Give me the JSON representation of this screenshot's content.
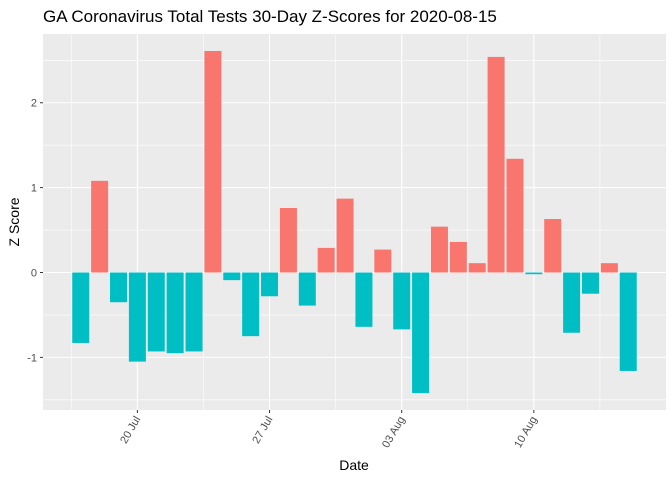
{
  "chart_data": {
    "type": "bar",
    "title": "GA Coronavirus Total Tests 30-Day Z-Scores for 2020-08-15",
    "xlabel": "Date",
    "ylabel": "Z Score",
    "x": [
      "2020-07-17",
      "2020-07-18",
      "2020-07-19",
      "2020-07-20",
      "2020-07-21",
      "2020-07-22",
      "2020-07-23",
      "2020-07-24",
      "2020-07-25",
      "2020-07-26",
      "2020-07-27",
      "2020-07-28",
      "2020-07-29",
      "2020-07-30",
      "2020-07-31",
      "2020-08-01",
      "2020-08-02",
      "2020-08-03",
      "2020-08-04",
      "2020-08-05",
      "2020-08-06",
      "2020-08-07",
      "2020-08-08",
      "2020-08-09",
      "2020-08-10",
      "2020-08-11",
      "2020-08-12",
      "2020-08-13",
      "2020-08-14",
      "2020-08-15"
    ],
    "values": [
      -0.83,
      1.08,
      -0.35,
      -1.05,
      -0.93,
      -0.95,
      -0.93,
      2.61,
      -0.09,
      -0.75,
      -0.28,
      0.76,
      -0.39,
      0.29,
      0.87,
      -0.64,
      0.27,
      -0.67,
      -1.42,
      0.54,
      0.36,
      0.11,
      2.54,
      1.34,
      -0.02,
      0.63,
      -0.71,
      -0.25,
      0.11,
      -1.16
    ],
    "x_ticks": [
      {
        "date": "2020-07-20",
        "label": "20 Jul"
      },
      {
        "date": "2020-07-27",
        "label": "27 Jul"
      },
      {
        "date": "2020-08-03",
        "label": "03 Aug"
      },
      {
        "date": "2020-08-10",
        "label": "10 Aug"
      }
    ],
    "y_ticks": [
      -1,
      0,
      1,
      2
    ],
    "ylim": [
      -1.62,
      2.81
    ],
    "xlim": [
      "2020-07-15",
      "2020-08-17"
    ],
    "grid": true,
    "legend": "none",
    "colors": {
      "positive": "#F8766D",
      "negative": "#00BFC4",
      "panel": "#EBEBEB",
      "grid": "#FFFFFF"
    }
  }
}
